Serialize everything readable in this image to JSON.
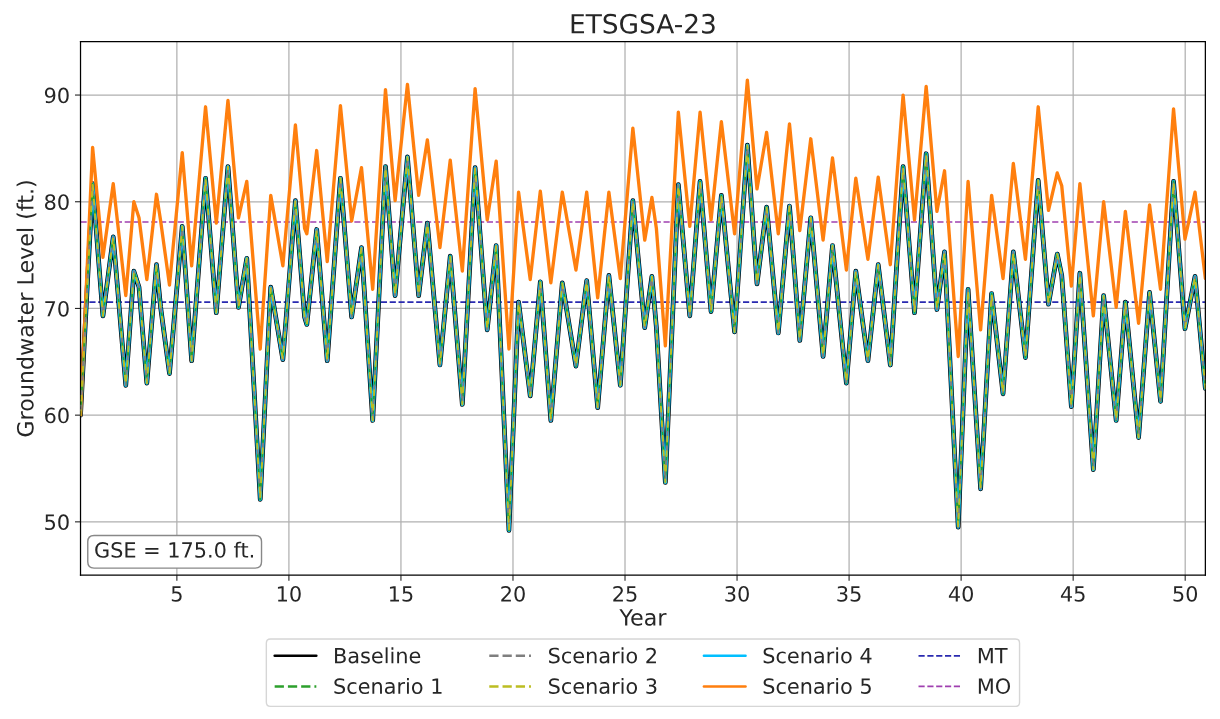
{
  "chart_data": {
    "type": "line",
    "title": "ETSGSA-23",
    "xlabel": "Year",
    "ylabel": "Groundwater Level (ft.)",
    "x": [
      0.7,
      1.24,
      1.7,
      2.16,
      2.72,
      3.08,
      3.31,
      3.66,
      4.09,
      4.27,
      4.67,
      5.24,
      5.66,
      6.28,
      6.76,
      7.28,
      7.75,
      8.12,
      8.72,
      9.19,
      9.73,
      10.29,
      10.7,
      10.8,
      11.24,
      11.71,
      12.3,
      12.8,
      13.24,
      13.74,
      14.31,
      14.74,
      15.29,
      15.79,
      16.18,
      16.74,
      17.2,
      17.74,
      18.31,
      18.85,
      19.25,
      19.82,
      20.25,
      20.77,
      21.22,
      21.69,
      22.2,
      22.81,
      23.29,
      23.78,
      24.28,
      24.79,
      25.35,
      25.88,
      26.2,
      26.4,
      26.8,
      27.38,
      27.89,
      28.35,
      28.84,
      29.3,
      29.89,
      30.46,
      30.89,
      31.32,
      31.84,
      32.34,
      32.8,
      33.29,
      33.84,
      34.26,
      34.88,
      35.3,
      35.84,
      36.3,
      36.84,
      37.41,
      37.92,
      38.44,
      38.92,
      39.26,
      39.87,
      40.31,
      40.87,
      41.36,
      41.87,
      42.33,
      42.87,
      43.44,
      43.9,
      44.29,
      44.49,
      44.92,
      45.3,
      45.9,
      46.36,
      46.92,
      47.33,
      47.92,
      48.41,
      48.9,
      49.48,
      49.99,
      50.44,
      50.9
    ],
    "series": [
      {
        "name": "Baseline",
        "color": "#000000",
        "line_style": "solid",
        "values": [
          60,
          81.7,
          69.3,
          76.7,
          62.8,
          73.5,
          72.0,
          63.0,
          74.1,
          70.2,
          63.9,
          77.7,
          65.1,
          82.2,
          69.6,
          83.3,
          70.1,
          74.7,
          52.1,
          72.0,
          65.2,
          80.1,
          69.2,
          68.5,
          77.4,
          65.1,
          82.2,
          69.2,
          75.7,
          59.5,
          83.3,
          71.2,
          84.2,
          71.2,
          78.0,
          64.7,
          74.9,
          61.0,
          83.2,
          68.0,
          75.9,
          49.2,
          70.6,
          61.8,
          72.5,
          59.5,
          72.4,
          64.6,
          72.6,
          60.7,
          73.1,
          62.8,
          80.1,
          68.2,
          73.0,
          68.2,
          53.7,
          81.6,
          69.3,
          81.9,
          69.7,
          80.6,
          67.8,
          85.3,
          72.3,
          79.5,
          67.7,
          79.6,
          67.0,
          78.5,
          65.5,
          75.9,
          63.0,
          73.5,
          65.1,
          74.1,
          64.7,
          83.3,
          69.6,
          84.5,
          69.9,
          75.3,
          49.5,
          71.8,
          53.1,
          71.4,
          62.0,
          75.3,
          65.4,
          82.0,
          70.4,
          75.1,
          73.1,
          60.8,
          73.3,
          54.9,
          71.2,
          59.5,
          70.6,
          57.9,
          71.5,
          61.3,
          81.9,
          68.1,
          73.0,
          62.5
        ]
      },
      {
        "name": "Scenario 1",
        "color": "#2ca02c",
        "line_style": "dashed",
        "values": [
          60,
          81.7,
          69.3,
          76.7,
          62.8,
          73.5,
          72.0,
          63.0,
          74.1,
          70.2,
          63.9,
          77.7,
          65.1,
          82.2,
          69.6,
          83.3,
          70.1,
          74.7,
          52.1,
          72.0,
          65.2,
          80.1,
          69.2,
          68.5,
          77.4,
          65.1,
          82.2,
          69.2,
          75.7,
          59.5,
          83.3,
          71.2,
          84.2,
          71.2,
          78.0,
          64.7,
          74.9,
          61.0,
          83.2,
          68.0,
          75.9,
          49.2,
          70.6,
          61.8,
          72.5,
          59.5,
          72.4,
          64.6,
          72.6,
          60.7,
          73.1,
          62.8,
          80.1,
          68.2,
          73.0,
          68.2,
          53.7,
          81.6,
          69.3,
          81.9,
          69.7,
          80.6,
          67.8,
          85.3,
          72.3,
          79.5,
          67.7,
          79.6,
          67.0,
          78.5,
          65.5,
          75.9,
          63.0,
          73.5,
          65.1,
          74.1,
          64.7,
          83.3,
          69.6,
          84.5,
          69.9,
          75.3,
          49.5,
          71.8,
          53.1,
          71.4,
          62.0,
          75.3,
          65.4,
          82.0,
          70.4,
          75.1,
          73.1,
          60.8,
          73.3,
          54.9,
          71.2,
          59.5,
          70.6,
          57.9,
          71.5,
          61.3,
          81.9,
          68.1,
          73.0,
          62.5
        ]
      },
      {
        "name": "Scenario 2",
        "color": "#7f7f7f",
        "line_style": "dashed",
        "values": [
          60,
          81.7,
          69.3,
          76.7,
          62.8,
          73.5,
          72.0,
          63.0,
          74.1,
          70.2,
          63.9,
          77.7,
          65.1,
          82.2,
          69.6,
          83.3,
          70.1,
          74.7,
          52.1,
          72.0,
          65.2,
          80.1,
          69.2,
          68.5,
          77.4,
          65.1,
          82.2,
          69.2,
          75.7,
          59.5,
          83.3,
          71.2,
          84.2,
          71.2,
          78.0,
          64.7,
          74.9,
          61.0,
          83.2,
          68.0,
          75.9,
          49.2,
          70.6,
          61.8,
          72.5,
          59.5,
          72.4,
          64.6,
          72.6,
          60.7,
          73.1,
          62.8,
          80.1,
          68.2,
          73.0,
          68.2,
          53.7,
          81.6,
          69.3,
          81.9,
          69.7,
          80.6,
          67.8,
          85.3,
          72.3,
          79.5,
          67.7,
          79.6,
          67.0,
          78.5,
          65.5,
          75.9,
          63.0,
          73.5,
          65.1,
          74.1,
          64.7,
          83.3,
          69.6,
          84.5,
          69.9,
          75.3,
          49.5,
          71.8,
          53.1,
          71.4,
          62.0,
          75.3,
          65.4,
          82.0,
          70.4,
          75.1,
          73.1,
          60.8,
          73.3,
          54.9,
          71.2,
          59.5,
          70.6,
          57.9,
          71.5,
          61.3,
          81.9,
          68.1,
          73.0,
          62.5
        ]
      },
      {
        "name": "Scenario 3",
        "color": "#bcbd22",
        "line_style": "dashed",
        "values": [
          60,
          81.7,
          69.3,
          76.7,
          62.8,
          73.5,
          72.0,
          63.0,
          74.1,
          70.2,
          63.9,
          77.7,
          65.1,
          82.2,
          69.6,
          83.3,
          70.1,
          74.7,
          52.1,
          72.0,
          65.2,
          80.1,
          69.2,
          68.5,
          77.4,
          65.1,
          82.2,
          69.2,
          75.7,
          59.5,
          83.3,
          71.2,
          84.2,
          71.2,
          78.0,
          64.7,
          74.9,
          61.0,
          83.2,
          68.0,
          75.9,
          49.2,
          70.6,
          61.8,
          72.5,
          59.5,
          72.4,
          64.6,
          72.6,
          60.7,
          73.1,
          62.8,
          80.1,
          68.2,
          73.0,
          68.2,
          53.7,
          81.6,
          69.3,
          81.9,
          69.7,
          80.6,
          67.8,
          85.3,
          72.3,
          79.5,
          67.7,
          79.6,
          67.0,
          78.5,
          65.5,
          75.9,
          63.0,
          73.5,
          65.1,
          74.1,
          64.7,
          83.3,
          69.6,
          84.5,
          69.9,
          75.3,
          49.5,
          71.8,
          53.1,
          71.4,
          62.0,
          75.3,
          65.4,
          82.0,
          70.4,
          75.1,
          73.1,
          60.8,
          73.3,
          54.9,
          71.2,
          59.5,
          70.6,
          57.9,
          71.5,
          61.3,
          81.9,
          68.1,
          73.0,
          62.5
        ]
      },
      {
        "name": "Scenario 4",
        "color": "#00bfff",
        "line_style": "solid",
        "values": [
          60,
          81.7,
          69.3,
          76.7,
          62.8,
          73.5,
          72.0,
          63.0,
          74.1,
          70.2,
          63.9,
          77.7,
          65.1,
          82.2,
          69.6,
          83.3,
          70.1,
          74.7,
          52.1,
          72.0,
          65.2,
          80.1,
          69.2,
          68.5,
          77.4,
          65.1,
          82.2,
          69.2,
          75.7,
          59.5,
          83.3,
          71.2,
          84.2,
          71.2,
          78.0,
          64.7,
          74.9,
          61.0,
          83.2,
          68.0,
          75.9,
          49.2,
          70.6,
          61.8,
          72.5,
          59.5,
          72.4,
          64.6,
          72.6,
          60.7,
          73.1,
          62.8,
          80.1,
          68.2,
          73.0,
          68.2,
          53.7,
          81.6,
          69.3,
          81.9,
          69.7,
          80.6,
          67.8,
          85.3,
          72.3,
          79.5,
          67.7,
          79.6,
          67.0,
          78.5,
          65.5,
          75.9,
          63.0,
          73.5,
          65.1,
          74.1,
          64.7,
          83.3,
          69.6,
          84.5,
          69.9,
          75.3,
          49.5,
          71.8,
          53.1,
          71.4,
          62.0,
          75.3,
          65.4,
          82.0,
          70.4,
          75.1,
          73.1,
          60.8,
          73.3,
          54.9,
          71.2,
          59.5,
          70.6,
          57.9,
          71.5,
          61.3,
          81.9,
          68.1,
          73.0,
          62.5
        ]
      },
      {
        "name": "Scenario 5",
        "color": "#ff7f0e",
        "line_style": "solid",
        "values": [
          60,
          85.1,
          74.8,
          81.7,
          71.2,
          80.0,
          78.5,
          72.7,
          80.7,
          78.3,
          72.2,
          84.6,
          74.0,
          88.9,
          78.0,
          89.5,
          78.5,
          81.9,
          66.2,
          80.6,
          74.0,
          87.2,
          77.5,
          77.0,
          84.8,
          74.4,
          89.0,
          78.2,
          83.2,
          71.8,
          90.5,
          80.1,
          91.0,
          80.6,
          85.8,
          75.7,
          83.9,
          73.5,
          90.6,
          78.3,
          83.8,
          66.2,
          80.9,
          72.7,
          81.0,
          72.4,
          80.9,
          73.6,
          80.9,
          71.0,
          80.9,
          72.8,
          86.9,
          76.4,
          80.4,
          77.5,
          66.5,
          88.4,
          77.7,
          88.4,
          78.3,
          87.5,
          77.0,
          91.4,
          81.2,
          86.5,
          77.0,
          87.3,
          77.3,
          85.9,
          76.4,
          84.1,
          73.6,
          82.2,
          74.6,
          82.3,
          74.1,
          90.0,
          78.3,
          90.8,
          79.1,
          82.9,
          65.5,
          81.9,
          68.0,
          80.6,
          72.8,
          83.6,
          74.6,
          88.9,
          79.2,
          82.7,
          81.5,
          72.1,
          81.7,
          69.3,
          80.0,
          70.1,
          79.1,
          68.6,
          79.7,
          71.8,
          88.7,
          76.5,
          80.9,
          72.8
        ]
      }
    ],
    "ref_lines": [
      {
        "axis": "y",
        "value": 70.6,
        "label": "MT",
        "color": "#2a2ab0",
        "line_style": "dashed"
      },
      {
        "axis": "y",
        "value": 78.1,
        "label": "MO",
        "color": "#a040b0",
        "line_style": "dashed"
      }
    ],
    "annotations": [
      "GSE = 175.0 ft."
    ],
    "xlim": [
      0.7,
      50.9
    ],
    "ylim": [
      45,
      95
    ],
    "xticks": [
      5,
      10,
      15,
      20,
      25,
      30,
      35,
      40,
      45,
      50
    ],
    "yticks": [
      50,
      60,
      70,
      80,
      90
    ],
    "grid": true,
    "legend": "bottom"
  }
}
